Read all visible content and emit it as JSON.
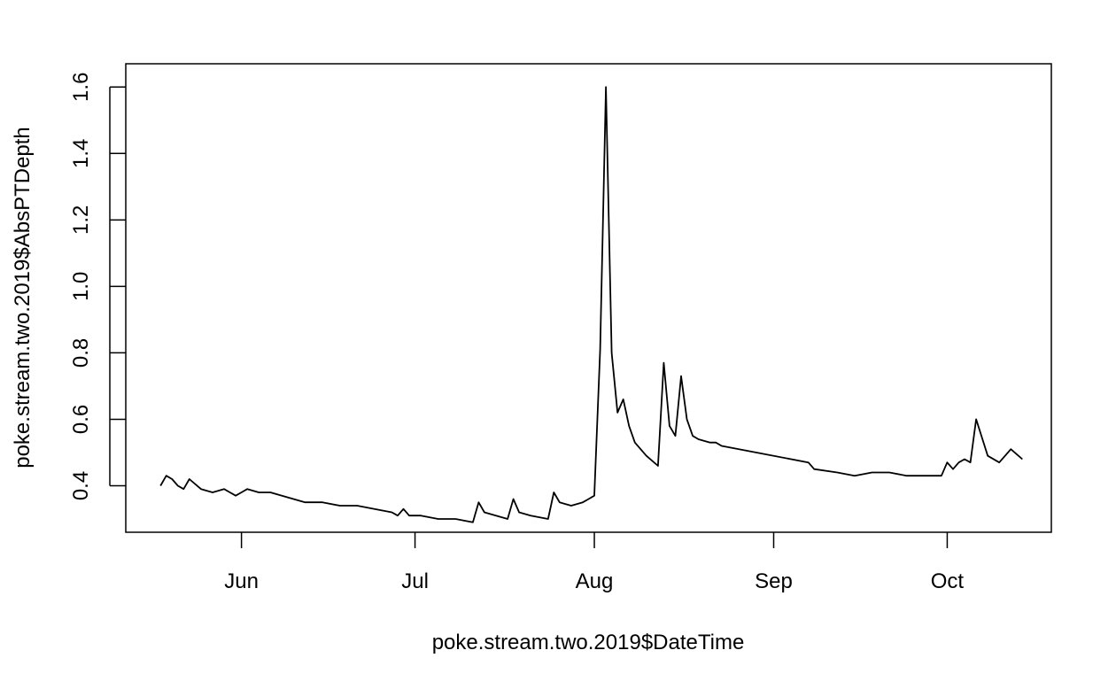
{
  "chart_data": {
    "type": "line",
    "title": "",
    "xlabel": "poke.stream.two.2019$DateTime",
    "ylabel": "poke.stream.two.2019$AbsPTDepth",
    "x_axis": {
      "kind": "date",
      "range": [
        "2019-05-12",
        "2019-10-19"
      ],
      "ticks": [
        {
          "value": "2019-06-01",
          "label": "Jun"
        },
        {
          "value": "2019-07-01",
          "label": "Jul"
        },
        {
          "value": "2019-08-01",
          "label": "Aug"
        },
        {
          "value": "2019-09-01",
          "label": "Sep"
        },
        {
          "value": "2019-10-01",
          "label": "Oct"
        }
      ]
    },
    "y_axis": {
      "range": [
        0.26,
        1.67
      ],
      "ticks": [
        {
          "value": 0.4,
          "label": "0.4"
        },
        {
          "value": 0.6,
          "label": "0.6"
        },
        {
          "value": 0.8,
          "label": "0.8"
        },
        {
          "value": 1.0,
          "label": "1.0"
        },
        {
          "value": 1.2,
          "label": "1.2"
        },
        {
          "value": 1.4,
          "label": "1.4"
        },
        {
          "value": 1.6,
          "label": "1.6"
        }
      ]
    },
    "grid": false,
    "line_color": "#000000",
    "series": [
      {
        "x": [
          "2019-05-18",
          "2019-05-19",
          "2019-05-20",
          "2019-05-21",
          "2019-05-22",
          "2019-05-23",
          "2019-05-25",
          "2019-05-27",
          "2019-05-29",
          "2019-05-30",
          "2019-05-31",
          "2019-06-01",
          "2019-06-02",
          "2019-06-04",
          "2019-06-06",
          "2019-06-08",
          "2019-06-10",
          "2019-06-12",
          "2019-06-15",
          "2019-06-18",
          "2019-06-21",
          "2019-06-24",
          "2019-06-27",
          "2019-06-28",
          "2019-06-29",
          "2019-06-30",
          "2019-07-02",
          "2019-07-05",
          "2019-07-08",
          "2019-07-11",
          "2019-07-12",
          "2019-07-13",
          "2019-07-15",
          "2019-07-17",
          "2019-07-18",
          "2019-07-19",
          "2019-07-21",
          "2019-07-24",
          "2019-07-25",
          "2019-07-26",
          "2019-07-28",
          "2019-07-30",
          "2019-07-31",
          "2019-08-01",
          "2019-08-02",
          "2019-08-03",
          "2019-08-04",
          "2019-08-05",
          "2019-08-06",
          "2019-08-07",
          "2019-08-08",
          "2019-08-10",
          "2019-08-12",
          "2019-08-13",
          "2019-08-14",
          "2019-08-15",
          "2019-08-16",
          "2019-08-17",
          "2019-08-18",
          "2019-08-19",
          "2019-08-21",
          "2019-08-22",
          "2019-08-23",
          "2019-09-07",
          "2019-09-08",
          "2019-09-12",
          "2019-09-15",
          "2019-09-18",
          "2019-09-21",
          "2019-09-24",
          "2019-09-28",
          "2019-09-30",
          "2019-10-01",
          "2019-10-02",
          "2019-10-03",
          "2019-10-04",
          "2019-10-05",
          "2019-10-06",
          "2019-10-08",
          "2019-10-10",
          "2019-10-12",
          "2019-10-14"
        ],
        "y": [
          0.4,
          0.43,
          0.42,
          0.4,
          0.39,
          0.42,
          0.39,
          0.38,
          0.39,
          0.38,
          0.37,
          0.38,
          0.39,
          0.38,
          0.38,
          0.37,
          0.36,
          0.35,
          0.35,
          0.34,
          0.34,
          0.33,
          0.32,
          0.31,
          0.33,
          0.31,
          0.31,
          0.3,
          0.3,
          0.29,
          0.35,
          0.32,
          0.31,
          0.3,
          0.36,
          0.32,
          0.31,
          0.3,
          0.38,
          0.35,
          0.34,
          0.35,
          0.36,
          0.37,
          0.81,
          1.6,
          0.8,
          0.62,
          0.66,
          0.58,
          0.53,
          0.49,
          0.46,
          0.77,
          0.58,
          0.55,
          0.73,
          0.6,
          0.55,
          0.54,
          0.53,
          0.53,
          0.52,
          0.47,
          0.45,
          0.44,
          0.43,
          0.44,
          0.44,
          0.43,
          0.43,
          0.43,
          0.47,
          0.45,
          0.47,
          0.48,
          0.47,
          0.6,
          0.49,
          0.47,
          0.51,
          0.48
        ]
      }
    ]
  }
}
